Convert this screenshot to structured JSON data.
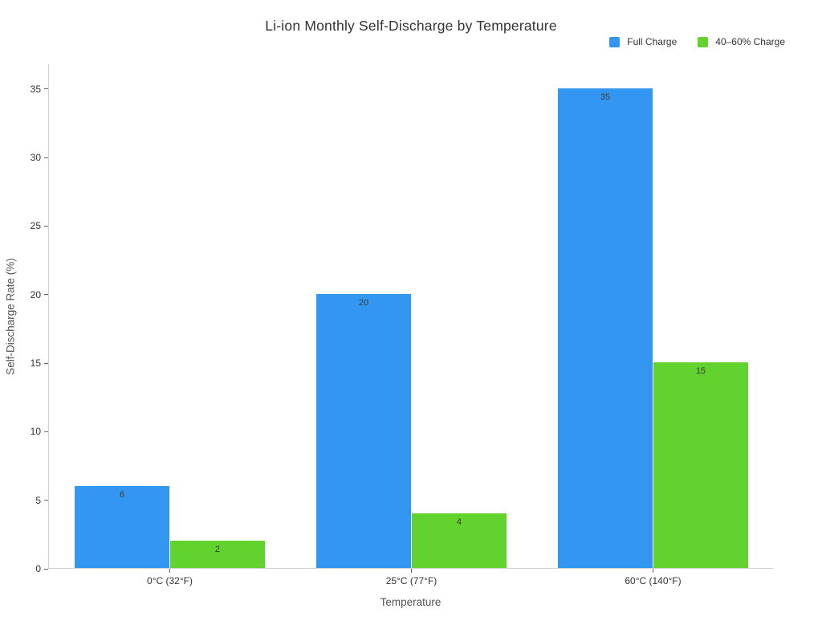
{
  "chart_data": {
    "type": "bar",
    "title": "Li-ion Monthly Self-Discharge by Temperature",
    "xlabel": "Temperature",
    "ylabel": "Self-Discharge Rate (%)",
    "categories": [
      "0°C (32°F)",
      "25°C (77°F)",
      "60°C (140°F)"
    ],
    "series": [
      {
        "name": "Full Charge",
        "color": "#3396F0",
        "values": [
          6,
          20,
          35
        ]
      },
      {
        "name": "40–60% Charge",
        "color": "#62D22F",
        "values": [
          2,
          4,
          15
        ]
      }
    ],
    "yticks": [
      0,
      5,
      10,
      15,
      20,
      25,
      30,
      35
    ],
    "ylim": [
      0,
      36.8
    ],
    "grid": false,
    "legend_position": "top-right",
    "bar_labels": true
  },
  "colors": {
    "background": "#ffffff",
    "axis_line": "#d2d2d2",
    "tick_mark": "#666666",
    "title_text": "#333333",
    "tick_text": "#333333",
    "axis_title_text": "#555555",
    "bar_label_text": "#3d3d3d"
  }
}
